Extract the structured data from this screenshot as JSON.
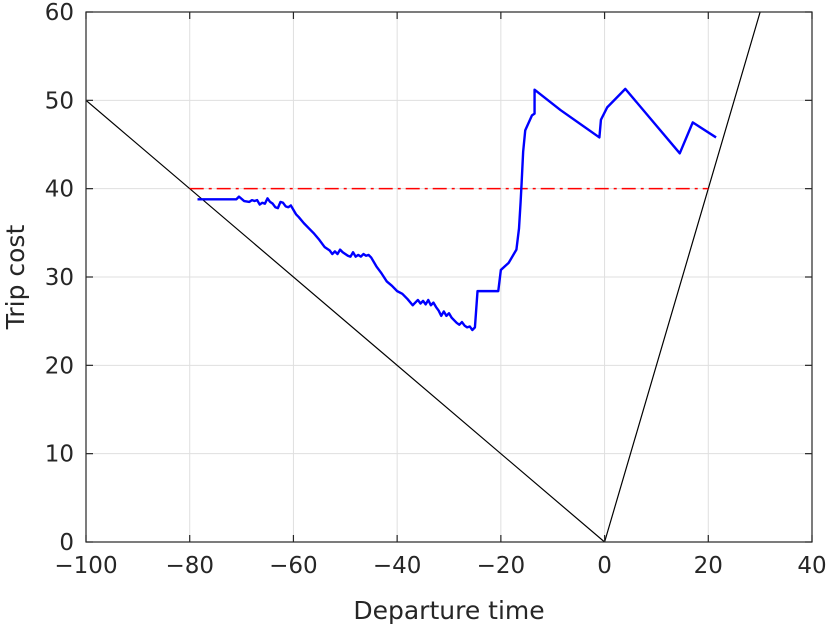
{
  "chart_data": {
    "type": "line",
    "title": "",
    "xlabel": "Departure time",
    "ylabel": "Trip cost",
    "xlim": [
      -100,
      40
    ],
    "ylim": [
      0,
      60
    ],
    "x_ticks": [
      -100,
      -80,
      -60,
      -40,
      -20,
      0,
      20,
      40
    ],
    "x_tick_labels": [
      "−100",
      "−80",
      "−60",
      "−40",
      "−20",
      "0",
      "20",
      "40"
    ],
    "y_ticks": [
      0,
      10,
      20,
      30,
      40,
      50,
      60
    ],
    "y_tick_labels": [
      "0",
      "10",
      "20",
      "30",
      "40",
      "50",
      "60"
    ],
    "grid": true,
    "legend": "none",
    "series": [
      {
        "color": "#0000ff",
        "style": "solid",
        "x": [
          -78.5,
          -71.0,
          -70.5,
          -69.5,
          -68.5,
          -68.0,
          -67.5,
          -67.0,
          -66.5,
          -66.0,
          -65.5,
          -65.0,
          -64.5,
          -64.0,
          -63.5,
          -63.0,
          -62.5,
          -62.0,
          -61.5,
          -61.0,
          -60.5,
          -60.0,
          -59.5,
          -59.0,
          -58.0,
          -57.0,
          -56.0,
          -55.0,
          -54.0,
          -53.0,
          -52.5,
          -52.0,
          -51.5,
          -51.0,
          -50.5,
          -50.0,
          -49.5,
          -49.0,
          -48.5,
          -48.0,
          -47.5,
          -47.0,
          -46.5,
          -46.0,
          -45.5,
          -45.0,
          -44.0,
          -43.0,
          -42.0,
          -41.0,
          -40.0,
          -39.0,
          -38.0,
          -37.0,
          -36.0,
          -35.5,
          -35.0,
          -34.5,
          -34.0,
          -33.5,
          -33.0,
          -32.5,
          -32.0,
          -31.5,
          -31.0,
          -30.5,
          -30.0,
          -29.5,
          -29.0,
          -28.5,
          -28.0,
          -27.5,
          -27.0,
          -26.5,
          -26.0,
          -25.5,
          -25.0,
          -24.5,
          -23.8,
          -22.0,
          -20.5,
          -20.0,
          -18.5,
          -17.0,
          -16.5,
          -16.2,
          -16.0,
          -15.7,
          -15.3,
          -15.0,
          -14.0,
          -13.5,
          -13.5,
          -8.5,
          -1.0,
          -0.7,
          0.5,
          1.0,
          4.0,
          14.5,
          17.0,
          21.5
        ],
        "y": [
          38.8,
          38.8,
          39.1,
          38.6,
          38.5,
          38.7,
          38.6,
          38.7,
          38.2,
          38.4,
          38.3,
          38.9,
          38.5,
          38.3,
          37.9,
          37.8,
          38.5,
          38.4,
          38.0,
          37.9,
          38.1,
          37.6,
          37.1,
          36.8,
          36.1,
          35.5,
          34.9,
          34.2,
          33.4,
          33.0,
          32.6,
          32.9,
          32.6,
          33.1,
          32.8,
          32.6,
          32.4,
          32.3,
          32.8,
          32.3,
          32.5,
          32.3,
          32.6,
          32.4,
          32.5,
          32.2,
          31.2,
          30.4,
          29.5,
          29.0,
          28.4,
          28.1,
          27.5,
          26.8,
          27.4,
          27.0,
          27.3,
          26.9,
          27.4,
          26.8,
          27.1,
          26.6,
          26.2,
          25.6,
          26.1,
          25.6,
          25.9,
          25.4,
          25.1,
          24.8,
          24.6,
          24.9,
          24.5,
          24.3,
          24.4,
          24.0,
          24.3,
          28.4,
          28.4,
          28.4,
          28.4,
          30.8,
          31.6,
          33.1,
          35.5,
          38.4,
          40.6,
          44.2,
          46.6,
          47.0,
          48.3,
          48.5,
          51.2,
          48.9,
          45.8,
          47.8,
          49.2,
          49.5,
          51.3,
          44.0,
          47.5,
          45.8
        ]
      },
      {
        "color": "#ff0000",
        "style": "dashdot",
        "x": [
          -80,
          20
        ],
        "y": [
          40,
          40
        ]
      },
      {
        "color": "#000000",
        "style": "solid",
        "x": [
          -100,
          0,
          30
        ],
        "y": [
          50,
          0,
          60
        ]
      }
    ]
  }
}
